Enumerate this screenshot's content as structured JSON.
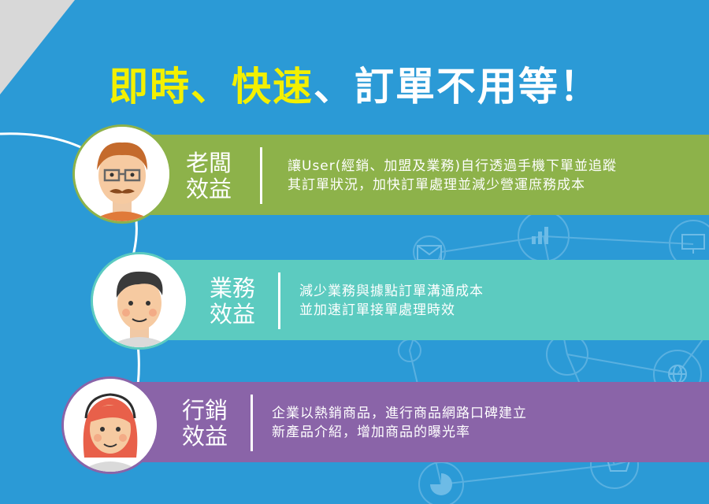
{
  "title": {
    "part1": "即時、快速",
    "part2": "、訂單不用等！"
  },
  "benefits": [
    {
      "label_line1": "老闆",
      "label_line2": "效益",
      "text_line1": "讓User(經銷、加盟及業務)自行透過手機下單並追蹤",
      "text_line2": "其訂單狀況，加快訂單處理並減少營運庶務成本",
      "color": "#8db24a",
      "avatar": "boss-avatar"
    },
    {
      "label_line1": "業務",
      "label_line2": "效益",
      "text_line1": "減少業務與據點訂單溝通成本",
      "text_line2": "並加速訂單接單處理時效",
      "color": "#5ccbc0",
      "avatar": "sales-avatar"
    },
    {
      "label_line1": "行銷",
      "label_line2": "效益",
      "text_line1": "企業以熱銷商品，進行商品網路口碑建立",
      "text_line2": "新產品介紹，增加商品的曝光率",
      "color": "#8a64a8",
      "avatar": "marketing-avatar"
    }
  ],
  "colors": {
    "background": "#2b9ad6",
    "title_highlight": "#f3f000",
    "title_white": "#ffffff"
  },
  "icons": [
    "bar-chart-icon",
    "monitor-icon",
    "mail-icon",
    "globe-icon",
    "smartphone-icon",
    "cart-icon",
    "pie-chart-icon"
  ]
}
